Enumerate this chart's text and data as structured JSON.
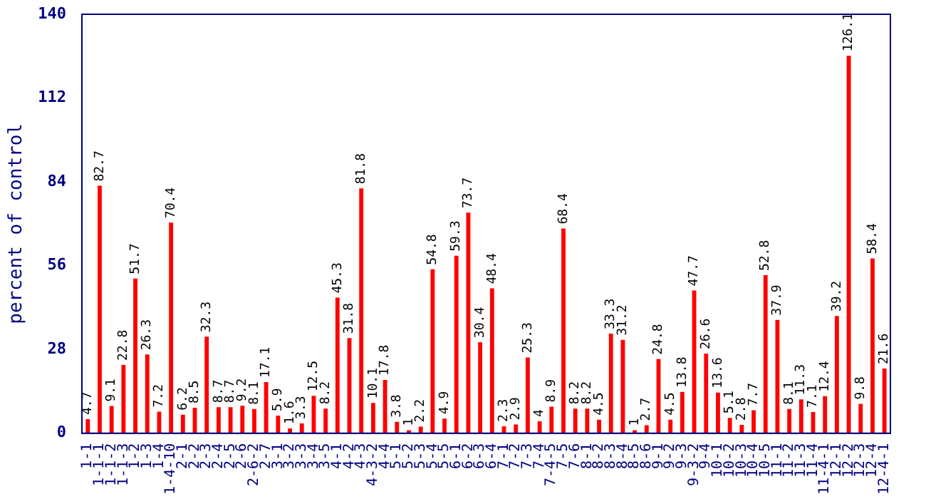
{
  "chart_data": {
    "type": "bar",
    "ylabel": "percent of control",
    "categories": [
      "1-1",
      "1-1-1",
      "1-1-2",
      "1-1-3",
      "1-2",
      "1-3",
      "1-4",
      "1-4-10",
      "2-1",
      "2-2",
      "2-3",
      "2-4",
      "2-5",
      "2-6",
      "2-6-2",
      "2-7",
      "3-1",
      "3-2",
      "3-3",
      "3-4",
      "3-5",
      "4-1",
      "4-2",
      "4-3",
      "4-3-2",
      "4-4",
      "5-1",
      "5-2",
      "5-3",
      "5-4",
      "5-5",
      "6-1",
      "6-2",
      "6-3",
      "6-4",
      "7-1",
      "7-2",
      "7-3",
      "7-4",
      "7-4-5",
      "7-5",
      "7-6",
      "8-1",
      "8-2",
      "8-3",
      "8-4",
      "8-5",
      "8-6",
      "9-1",
      "9-2",
      "9-3",
      "9-3-2",
      "9-4",
      "10-1",
      "10-2",
      "10-3",
      "10-4",
      "10-5",
      "11-1",
      "11-2",
      "11-3",
      "11-4",
      "11-4-1",
      "12-1",
      "12-2",
      "12-3",
      "12-4",
      "12-4-1"
    ],
    "values": [
      4.7,
      82.7,
      9.1,
      22.8,
      51.7,
      26.3,
      7.2,
      70.4,
      6.2,
      8.5,
      32.3,
      8.7,
      8.7,
      9.2,
      8.1,
      17.1,
      5.9,
      1.6,
      3.3,
      12.5,
      8.2,
      45.3,
      31.8,
      81.8,
      10.1,
      17.8,
      3.8,
      1,
      2.2,
      54.8,
      4.9,
      59.3,
      73.7,
      30.4,
      48.4,
      2.3,
      2.9,
      25.3,
      4,
      8.9,
      68.4,
      8.2,
      8.2,
      4.5,
      33.3,
      31.2,
      1,
      2.7,
      24.8,
      4.5,
      13.8,
      47.7,
      26.6,
      13.6,
      5.1,
      2.8,
      7.7,
      52.8,
      37.9,
      8.1,
      11.3,
      7.1,
      12.4,
      39.2,
      126.1,
      9.8,
      58.4,
      21.6
    ],
    "color": "#ff0000",
    "ylim": [
      0,
      140
    ],
    "yticks": [
      0,
      28,
      56,
      84,
      112,
      140
    ],
    "grid": false,
    "legend": false,
    "data_labels": true
  }
}
